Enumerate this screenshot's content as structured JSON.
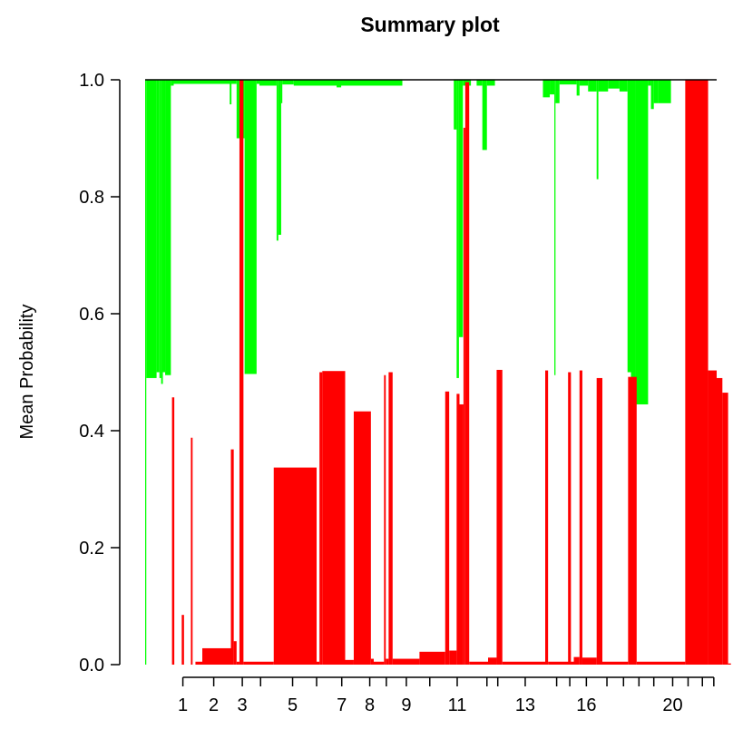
{
  "chart_data": {
    "type": "bar",
    "title": "Summary plot",
    "xlabel": "",
    "ylabel": "Mean Probability",
    "ylim": [
      0,
      1
    ],
    "yticks": [
      "0.0",
      "0.2",
      "0.4",
      "0.6",
      "0.8",
      "1.0"
    ],
    "xlim": [
      0,
      1000
    ],
    "x_tick_positions": [
      66,
      120,
      170,
      202,
      258,
      300,
      344,
      393,
      422,
      457,
      498,
      546,
      598,
      617,
      665,
      720,
      743,
      772,
      808,
      837,
      864,
      890,
      923,
      950,
      975,
      995
    ],
    "x_tick_labels": [
      {
        "text": "1",
        "x": 66
      },
      {
        "text": "2",
        "x": 120
      },
      {
        "text": "3",
        "x": 170
      },
      {
        "text": "5",
        "x": 258
      },
      {
        "text": "7",
        "x": 344
      },
      {
        "text": "8",
        "x": 393
      },
      {
        "text": "9",
        "x": 457
      },
      {
        "text": "11",
        "x": 546
      },
      {
        "text": "13",
        "x": 665
      },
      {
        "text": "16",
        "x": 772
      },
      {
        "text": "20",
        "x": 923
      }
    ],
    "series": [
      {
        "color": "#00ff00",
        "segments": [
          [
            0,
            2,
            0,
            1.0
          ],
          [
            2,
            20,
            0.49,
            1.0
          ],
          [
            20,
            25,
            0.5,
            1.0
          ],
          [
            25,
            28,
            0.49,
            1.0
          ],
          [
            28,
            31,
            0.48,
            1.0
          ],
          [
            31,
            35,
            0.5,
            1.0
          ],
          [
            35,
            45,
            0.495,
            1.0
          ],
          [
            45,
            50,
            0.99,
            1.0
          ],
          [
            50,
            160,
            0.993,
            1.0
          ],
          [
            148,
            151,
            0.958,
            1.0
          ],
          [
            160,
            174,
            0.9,
            1.0
          ],
          [
            174,
            195,
            0.497,
            1.0
          ],
          [
            195,
            200,
            0.993,
            1.0
          ],
          [
            200,
            230,
            0.99,
            1.0
          ],
          [
            230,
            233,
            0.725,
            1.0
          ],
          [
            233,
            238,
            0.735,
            1.0
          ],
          [
            238,
            240,
            0.96,
            1.0
          ],
          [
            240,
            260,
            0.992,
            1.0
          ],
          [
            260,
            450,
            0.99,
            1.0
          ],
          [
            335,
            343,
            0.987,
            1.0
          ],
          [
            540,
            545,
            0.915,
            1.0
          ],
          [
            545,
            549,
            0.49,
            1.0
          ],
          [
            549,
            556,
            0.56,
            1.0
          ],
          [
            556,
            570,
            0.99,
            1.0
          ],
          [
            580,
            590,
            0.99,
            1.0
          ],
          [
            590,
            598,
            0.88,
            1.0
          ],
          [
            598,
            612,
            0.99,
            1.0
          ],
          [
            696,
            708,
            0.97,
            1.0
          ],
          [
            708,
            716,
            0.975,
            1.0
          ],
          [
            716,
            718,
            0.495,
            1.0
          ],
          [
            718,
            725,
            0.96,
            1.0
          ],
          [
            725,
            755,
            0.992,
            1.0
          ],
          [
            755,
            760,
            0.973,
            1.0
          ],
          [
            760,
            775,
            0.99,
            1.0
          ],
          [
            775,
            790,
            0.98,
            1.0
          ],
          [
            790,
            793,
            0.83,
            1.0
          ],
          [
            793,
            810,
            0.98,
            1.0
          ],
          [
            810,
            830,
            0.985,
            1.0
          ],
          [
            830,
            844,
            0.98,
            1.0
          ],
          [
            844,
            850,
            0.5,
            1.0
          ],
          [
            850,
            858,
            0.47,
            1.0
          ],
          [
            858,
            880,
            0.445,
            1.0
          ],
          [
            880,
            885,
            0.99,
            1.0
          ],
          [
            885,
            890,
            0.95,
            1.0
          ],
          [
            890,
            897,
            0.96,
            1.0
          ],
          [
            897,
            920,
            0.96,
            1.0
          ]
        ]
      },
      {
        "color": "#ff0000",
        "segments": [
          [
            47,
            51,
            0,
            0.457
          ],
          [
            64,
            68,
            0,
            0.085
          ],
          [
            80,
            83,
            0,
            0.388
          ],
          [
            88,
            100,
            0,
            0.005
          ],
          [
            100,
            150,
            0,
            0.028
          ],
          [
            150,
            155,
            0,
            0.368
          ],
          [
            155,
            160,
            0,
            0.04
          ],
          [
            160,
            165,
            0,
            0.005
          ],
          [
            165,
            172,
            0,
            1.0
          ],
          [
            172,
            225,
            0,
            0.005
          ],
          [
            225,
            300,
            0,
            0.337
          ],
          [
            300,
            305,
            0,
            0.005
          ],
          [
            305,
            310,
            0,
            0.5
          ],
          [
            310,
            350,
            0,
            0.502
          ],
          [
            350,
            365,
            0,
            0.008
          ],
          [
            365,
            395,
            0,
            0.433
          ],
          [
            395,
            400,
            0,
            0.01
          ],
          [
            400,
            418,
            0,
            0.005
          ],
          [
            418,
            421,
            0,
            0.495
          ],
          [
            421,
            426,
            0,
            0.01
          ],
          [
            426,
            433,
            0,
            0.5
          ],
          [
            433,
            480,
            0,
            0.01
          ],
          [
            480,
            525,
            0,
            0.022
          ],
          [
            525,
            532,
            0,
            0.467
          ],
          [
            532,
            545,
            0,
            0.024
          ],
          [
            545,
            550,
            0,
            0.463
          ],
          [
            550,
            557,
            0,
            0.445
          ],
          [
            557,
            560,
            0,
            0.918
          ],
          [
            560,
            567,
            0,
            0.996
          ],
          [
            567,
            600,
            0,
            0.005
          ],
          [
            600,
            615,
            0,
            0.012
          ],
          [
            615,
            625,
            0,
            0.504
          ],
          [
            625,
            700,
            0,
            0.005
          ],
          [
            700,
            705,
            0,
            0.503
          ],
          [
            705,
            750,
            0,
            0.005
          ],
          [
            740,
            745,
            0,
            0.5
          ],
          [
            750,
            760,
            0,
            0.013
          ],
          [
            760,
            765,
            0,
            0.503
          ],
          [
            765,
            790,
            0,
            0.012
          ],
          [
            790,
            800,
            0,
            0.49
          ],
          [
            800,
            845,
            0,
            0.005
          ],
          [
            845,
            860,
            0,
            0.492
          ],
          [
            860,
            945,
            0,
            0.005
          ],
          [
            945,
            985,
            0,
            1.0
          ],
          [
            985,
            1000,
            0,
            0.503
          ],
          [
            1000,
            1010,
            0,
            0.49
          ],
          [
            1010,
            1020,
            0,
            0.465
          ],
          [
            1020,
            1025,
            0,
            0.002
          ]
        ]
      }
    ]
  }
}
